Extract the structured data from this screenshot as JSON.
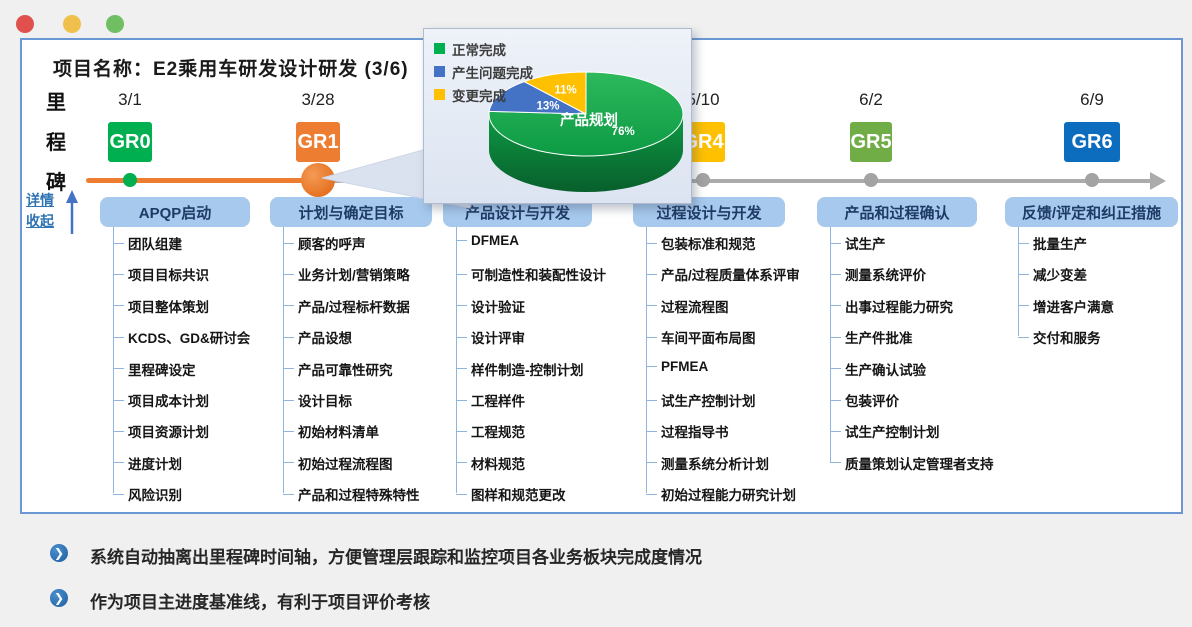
{
  "header": {
    "project_title": "项目名称：E2乘用车研发设计研发 (3/6)"
  },
  "axis": {
    "label": "里程碑",
    "detail_link": "详情",
    "collapse_link": "收起"
  },
  "timeline": {
    "done_color": "#ED7D31",
    "upcoming_color": "#ABABAB",
    "milestones": [
      {
        "id": "GR0",
        "date": "3/1",
        "color": "#00B050"
      },
      {
        "id": "GR1",
        "date": "3/28",
        "color": "#ED7D31",
        "current": true
      },
      {
        "id": "GR4",
        "date": "5/10",
        "color": "#FFC000"
      },
      {
        "id": "GR5",
        "date": "6/2",
        "color": "#70AD47"
      },
      {
        "id": "GR6",
        "date": "6/9",
        "color": "#0C6CBE"
      }
    ]
  },
  "popup": {
    "legend": [
      {
        "label": "正常完成",
        "color": "#00B050"
      },
      {
        "label": "产生问题完成",
        "color": "#4472C4"
      },
      {
        "label": "变更完成",
        "color": "#FFC000"
      }
    ],
    "chart_data": {
      "type": "pie",
      "style": "3d",
      "title": "产品规划",
      "labels": [
        "正常完成",
        "产生问题完成",
        "变更完成"
      ],
      "values": [
        76,
        13,
        11
      ],
      "unit": "%",
      "colors": [
        "#00B050",
        "#4472C4",
        "#FFC000"
      ],
      "legend_position": "top-left",
      "start_angle": 0,
      "direction": "clockwise"
    }
  },
  "columns": [
    {
      "header": "APQP启动",
      "items": [
        "团队组建",
        "项目目标共识",
        "项目整体策划",
        "KCDS、GD&研讨会",
        "里程碑设定",
        "项目成本计划",
        "项目资源计划",
        "进度计划",
        "风险识别"
      ]
    },
    {
      "header": "计划与确定目标",
      "items": [
        "顾客的呼声",
        "业务计划/营销策略",
        "产品/过程标杆数据",
        "产品设想",
        "产品可靠性研究",
        "设计目标",
        "初始材料清单",
        "初始过程流程图",
        "产品和过程特殊特性"
      ]
    },
    {
      "header": "产品设计与开发",
      "items": [
        "DFMEA",
        "可制造性和装配性设计",
        "设计验证",
        "设计评审",
        "样件制造-控制计划",
        "工程样件",
        "工程规范",
        "材料规范",
        "图样和规范更改"
      ]
    },
    {
      "header": "过程设计与开发",
      "items": [
        "包装标准和规范",
        "产品/过程质量体系评审",
        "过程流程图",
        "车间平面布局图",
        "PFMEA",
        "试生产控制计划",
        "过程指导书",
        "测量系统分析计划",
        "初始过程能力研究计划"
      ]
    },
    {
      "header": "产品和过程确认",
      "items": [
        "试生产",
        "测量系统评价",
        "出事过程能力研究",
        "生产件批准",
        "生产确认试验",
        "包装评价",
        "试生产控制计划",
        "质量策划认定管理者支持"
      ]
    },
    {
      "header": "反馈/评定和纠正措施",
      "items": [
        "批量生产",
        "减少变差",
        "增进客户满意",
        "交付和服务"
      ]
    }
  ],
  "notes": [
    "系统自动抽离出里程碑时间轴，方便管理层跟踪和监控项目各业务板块完成度情况",
    "作为项目主进度基准线，有利于项目评价考核"
  ]
}
